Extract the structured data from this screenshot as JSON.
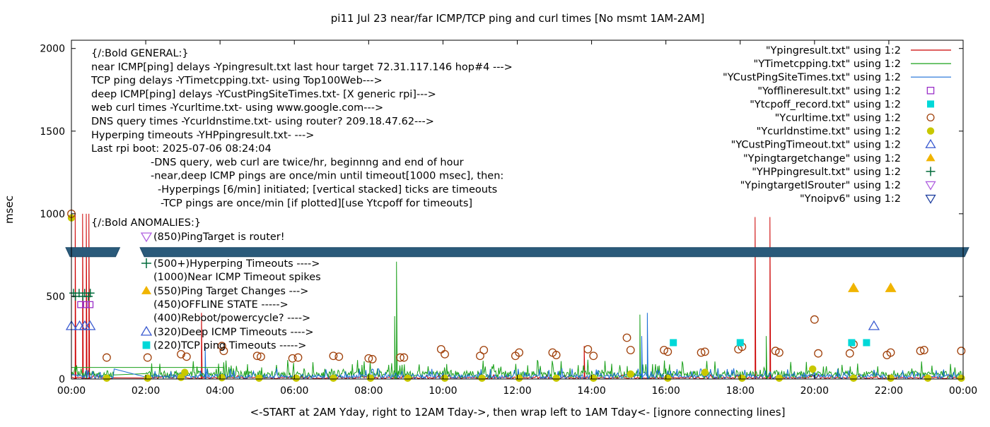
{
  "chart_data": {
    "type": "line",
    "title": "pi11 Jul 23  near/far ICMP/TCP ping and curl times [No msmt 1AM-2AM]",
    "xlabel": "<-START at 2AM Yday, right to 12AM Tday->, then wrap left to 1AM Tday<- [ignore connecting lines]",
    "ylabel": "msec",
    "xlim": [
      0,
      24
    ],
    "ylim": [
      0,
      2050
    ],
    "x_tick_labels": [
      "00:00",
      "02:00",
      "04:00",
      "06:00",
      "08:00",
      "10:00",
      "12:00",
      "14:00",
      "16:00",
      "18:00",
      "20:00",
      "22:00",
      "00:00"
    ],
    "y_ticks": [
      0,
      500,
      1000,
      1500,
      2000
    ],
    "y_tick_labels": [
      "0",
      "500",
      "1000",
      "1500",
      "2000"
    ],
    "legend": [
      {
        "label": "\"Ypingresult.txt\" using 1:2",
        "marker": "line",
        "color": "#cc0000"
      },
      {
        "label": "\"YTimetcpping.txt\" using 1:2",
        "marker": "line",
        "color": "#1aa01a"
      },
      {
        "label": "\"YCustPingSiteTimes.txt\" using 1:2",
        "marker": "line",
        "color": "#1a6fd6"
      },
      {
        "label": "\"Yofflineresult.txt\" using 1:2",
        "marker": "open-square",
        "color": "#9a30c8"
      },
      {
        "label": "\"Ytcpoff_record.txt\" using 1:2",
        "marker": "filled-square",
        "color": "#00d8d8"
      },
      {
        "label": "\"Ycurltime.txt\" using 1:2",
        "marker": "open-circle",
        "color": "#a0400a"
      },
      {
        "label": "\"Ycurldnstime.txt\" using 1:2",
        "marker": "filled-circle",
        "color": "#c8c800"
      },
      {
        "label": "\"YCustPingTimeout.txt\" using 1:2",
        "marker": "open-triangle-up",
        "color": "#3a5ad0"
      },
      {
        "label": "\"Ypingtargetchange\" using 1:2",
        "marker": "filled-triangle-up",
        "color": "#f0b400"
      },
      {
        "label": "\"YHPpingresult.txt\" using 1:2",
        "marker": "plus",
        "color": "#006a3a"
      },
      {
        "label": "\"YpingtargetISrouter\" using 1:2",
        "marker": "open-triangle-down",
        "color": "#b060e0"
      },
      {
        "label": "\"Ynoipv6\" using 1:2",
        "marker": "open-triangle-down",
        "color": "#2040a0"
      }
    ],
    "annotations_general": [
      "{/:Bold GENERAL:}",
      "near ICMP[ping] delays -Ypingresult.txt last hour target 72.31.117.146 hop#4 --->",
      "TCP ping delays -YTimetcpping.txt- using Top100Web--->",
      "deep ICMP[ping] delays -YCustPingSiteTimes.txt- [X generic rpi]--->",
      "web curl times -Ycurltime.txt- using www.google.com--->",
      "DNS query times -Ycurldnstime.txt- using router? 209.18.47.62--->",
      "Hyperping timeouts -YHPpingresult.txt- --->",
      "Last rpi boot: 2025-07-06 08:24:04",
      "-DNS query, web curl are twice/hr, beginnng and end of hour",
      "-near,deep ICMP pings are once/min until timeout[1000 msec], then:",
      "-Hyperpings [6/min] initiated; [vertical stacked] ticks are timeouts",
      "-TCP pings are once/min [if plotted][use Ytcpoff for timeouts]"
    ],
    "annotations_anomalies": [
      "{/:Bold ANOMALIES:}",
      "(850)PingTarget is router!",
      "(500+)Hyperping Timeouts ---->",
      "(1000)Near ICMP Timeout spikes",
      "(550)Ping Target Changes --->",
      "(450)OFFLINE STATE ----->",
      "(400)Reboot/powercycle? ---->",
      "(320)Deep ICMP Timeouts ---->",
      "(220)TCP ping Timeouts ----->"
    ],
    "noipv6_band": {
      "y": 770,
      "x_segments": [
        [
          0,
          1.15
        ],
        [
          2.0,
          24
        ]
      ]
    },
    "near_icmp_spikes": [
      {
        "x": 0.1,
        "y": 1000
      },
      {
        "x": 0.3,
        "y": 1000
      },
      {
        "x": 0.4,
        "y": 1000
      },
      {
        "x": 0.47,
        "y": 1000
      },
      {
        "x": 18.4,
        "y": 980
      },
      {
        "x": 18.8,
        "y": 980
      },
      {
        "x": 3.5,
        "y": 400
      },
      {
        "x": 13.8,
        "y": 200
      }
    ],
    "tcp_spikes": [
      {
        "x": 8.75,
        "y": 710
      },
      {
        "x": 8.7,
        "y": 380
      },
      {
        "x": 15.3,
        "y": 390
      },
      {
        "x": 18.7,
        "y": 260
      }
    ],
    "deep_icmp_spikes": [
      {
        "x": 15.5,
        "y": 400
      },
      {
        "x": 15.35,
        "y": 260
      },
      {
        "x": 3.6,
        "y": 200
      }
    ],
    "hyperping_timeouts": [
      {
        "x": 0.0,
        "y": 520
      },
      {
        "x": 0.15,
        "y": 520
      },
      {
        "x": 0.3,
        "y": 520
      },
      {
        "x": 0.45,
        "y": 520
      },
      {
        "x": 0.05,
        "y": 500
      },
      {
        "x": 0.25,
        "y": 500
      },
      {
        "x": 0.4,
        "y": 500
      }
    ],
    "offline_points": [
      {
        "x": 0.25,
        "y": 450
      },
      {
        "x": 0.38,
        "y": 450
      },
      {
        "x": 0.5,
        "y": 450
      }
    ],
    "deep_icmp_timeouts": [
      {
        "x": 0.0,
        "y": 320
      },
      {
        "x": 0.22,
        "y": 320
      },
      {
        "x": 0.36,
        "y": 320
      },
      {
        "x": 0.5,
        "y": 320
      },
      {
        "x": 21.6,
        "y": 320
      }
    ],
    "tcp_timeouts": [
      {
        "x": 16.2,
        "y": 220
      },
      {
        "x": 18.0,
        "y": 220
      },
      {
        "x": 21.0,
        "y": 220
      },
      {
        "x": 21.4,
        "y": 220
      }
    ],
    "ping_target_changes": [
      {
        "x": 21.05,
        "y": 550
      },
      {
        "x": 22.05,
        "y": 550
      }
    ],
    "curl_times": [
      {
        "x": 0.0,
        "y": 1000
      },
      {
        "x": 0.95,
        "y": 130
      },
      {
        "x": 2.05,
        "y": 130
      },
      {
        "x": 2.95,
        "y": 150
      },
      {
        "x": 3.1,
        "y": 135
      },
      {
        "x": 4.05,
        "y": 200
      },
      {
        "x": 4.1,
        "y": 170
      },
      {
        "x": 5.0,
        "y": 140
      },
      {
        "x": 5.1,
        "y": 135
      },
      {
        "x": 5.95,
        "y": 125
      },
      {
        "x": 6.1,
        "y": 130
      },
      {
        "x": 7.05,
        "y": 140
      },
      {
        "x": 7.2,
        "y": 135
      },
      {
        "x": 8.0,
        "y": 125
      },
      {
        "x": 8.1,
        "y": 120
      },
      {
        "x": 8.85,
        "y": 130
      },
      {
        "x": 8.95,
        "y": 130
      },
      {
        "x": 9.95,
        "y": 180
      },
      {
        "x": 10.05,
        "y": 150
      },
      {
        "x": 11.0,
        "y": 140
      },
      {
        "x": 11.1,
        "y": 175
      },
      {
        "x": 11.95,
        "y": 140
      },
      {
        "x": 12.05,
        "y": 160
      },
      {
        "x": 12.95,
        "y": 160
      },
      {
        "x": 13.05,
        "y": 145
      },
      {
        "x": 13.9,
        "y": 180
      },
      {
        "x": 14.05,
        "y": 140
      },
      {
        "x": 14.95,
        "y": 250
      },
      {
        "x": 15.05,
        "y": 175
      },
      {
        "x": 15.95,
        "y": 175
      },
      {
        "x": 16.05,
        "y": 165
      },
      {
        "x": 16.95,
        "y": 160
      },
      {
        "x": 17.05,
        "y": 165
      },
      {
        "x": 17.95,
        "y": 180
      },
      {
        "x": 18.05,
        "y": 195
      },
      {
        "x": 18.95,
        "y": 170
      },
      {
        "x": 19.05,
        "y": 160
      },
      {
        "x": 20.0,
        "y": 360
      },
      {
        "x": 20.1,
        "y": 155
      },
      {
        "x": 20.95,
        "y": 155
      },
      {
        "x": 21.05,
        "y": 210
      },
      {
        "x": 21.95,
        "y": 145
      },
      {
        "x": 22.05,
        "y": 160
      },
      {
        "x": 22.85,
        "y": 170
      },
      {
        "x": 22.95,
        "y": 175
      },
      {
        "x": 23.95,
        "y": 170
      }
    ],
    "dns_times": [
      {
        "x": 0.0,
        "y": 975
      },
      {
        "x": 0.95,
        "y": 5
      },
      {
        "x": 2.05,
        "y": 5
      },
      {
        "x": 2.95,
        "y": 10
      },
      {
        "x": 3.05,
        "y": 40
      },
      {
        "x": 4.05,
        "y": 8
      },
      {
        "x": 5.05,
        "y": 5
      },
      {
        "x": 6.05,
        "y": 5
      },
      {
        "x": 7.05,
        "y": 5
      },
      {
        "x": 8.05,
        "y": 5
      },
      {
        "x": 9.05,
        "y": 5
      },
      {
        "x": 10.05,
        "y": 5
      },
      {
        "x": 11.05,
        "y": 5
      },
      {
        "x": 12.05,
        "y": 5
      },
      {
        "x": 13.05,
        "y": 5
      },
      {
        "x": 14.05,
        "y": 5
      },
      {
        "x": 15.05,
        "y": 30
      },
      {
        "x": 16.05,
        "y": 5
      },
      {
        "x": 17.05,
        "y": 40
      },
      {
        "x": 18.05,
        "y": 5
      },
      {
        "x": 19.05,
        "y": 5
      },
      {
        "x": 19.95,
        "y": 60
      },
      {
        "x": 21.05,
        "y": 5
      },
      {
        "x": 22.05,
        "y": 5
      },
      {
        "x": 23.05,
        "y": 5
      },
      {
        "x": 23.95,
        "y": 5
      }
    ],
    "grid": false
  }
}
